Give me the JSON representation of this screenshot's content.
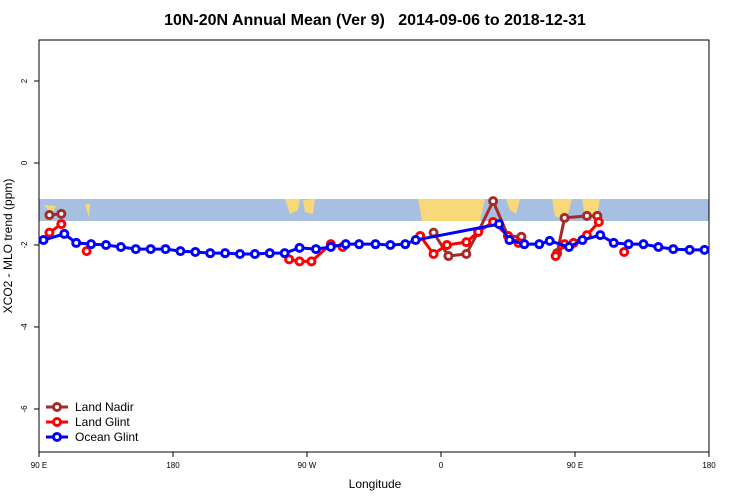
{
  "chart_data": {
    "type": "line",
    "title": "10N-20N Annual Mean (Ver 9)   2014-09-06 to 2018-12-31",
    "x_label": "Longitude",
    "y_label": "XCO2 - MLO trend (ppm)",
    "xlim": [
      90,
      540
    ],
    "ylim": [
      -7.05,
      3
    ],
    "xticks": [
      {
        "value": 90,
        "label": "90 E"
      },
      {
        "value": 180,
        "label": "180"
      },
      {
        "value": 270,
        "label": "90 W"
      },
      {
        "value": 360,
        "label": "0"
      },
      {
        "value": 450,
        "label": "90 E"
      },
      {
        "value": 540,
        "label": "180"
      }
    ],
    "yticks": [
      -6,
      -4,
      -2,
      0,
      2
    ],
    "legend": "bottom-left",
    "series": [
      {
        "name": "Land Nadir",
        "color": "#a52a2a",
        "x": [
          97,
          105,
          200,
          355,
          365,
          377,
          385,
          395,
          405,
          414,
          425,
          438,
          443,
          458,
          465
        ],
        "values": [
          -1.27,
          -1.24,
          null,
          -1.7,
          -2.27,
          -2.22,
          -1.68,
          -0.93,
          -1.78,
          -1.8,
          null,
          -2.2,
          -1.34,
          -1.29,
          -1.29
        ]
      },
      {
        "name": "Land Glint",
        "color": "#ff0000",
        "x": [
          97,
          105,
          114,
          122,
          200,
          258,
          265,
          273,
          286,
          294,
          320,
          346,
          355,
          364,
          377,
          385,
          395,
          405,
          412,
          425,
          437,
          443,
          449,
          458,
          466,
          475,
          483
        ],
        "values": [
          -1.7,
          -1.49,
          null,
          -2.15,
          null,
          -2.35,
          -2.4,
          -2.4,
          -1.98,
          -2.05,
          null,
          -1.78,
          -2.22,
          -2.0,
          -1.93,
          -1.68,
          -1.44,
          -1.78,
          -1.95,
          null,
          -2.27,
          -1.98,
          -1.95,
          -1.76,
          -1.44,
          null,
          -2.17
        ]
      },
      {
        "name": "Ocean Glint",
        "color": "#0000ff",
        "x": [
          93,
          107,
          115,
          125,
          135,
          145,
          155,
          165,
          175,
          185,
          195,
          205,
          215,
          225,
          235,
          245,
          255,
          265,
          276,
          286,
          296,
          305,
          316,
          326,
          336,
          343,
          399,
          406,
          416,
          426,
          433,
          446,
          455,
          467,
          476,
          486,
          496,
          506,
          516,
          527,
          537
        ],
        "values": [
          -1.88,
          -1.73,
          -1.95,
          -1.98,
          -2.0,
          -2.05,
          -2.1,
          -2.1,
          -2.1,
          -2.15,
          -2.17,
          -2.2,
          -2.2,
          -2.22,
          -2.22,
          -2.2,
          -2.2,
          -2.07,
          -2.1,
          -2.05,
          -1.98,
          -1.98,
          -1.98,
          -2.0,
          -1.98,
          -1.88,
          -1.49,
          -1.88,
          -1.98,
          -1.98,
          -1.9,
          -2.05,
          -1.88,
          -1.76,
          -1.95,
          -1.98,
          -1.98,
          -2.05,
          -2.1,
          -2.12,
          -2.12
        ]
      }
    ]
  }
}
